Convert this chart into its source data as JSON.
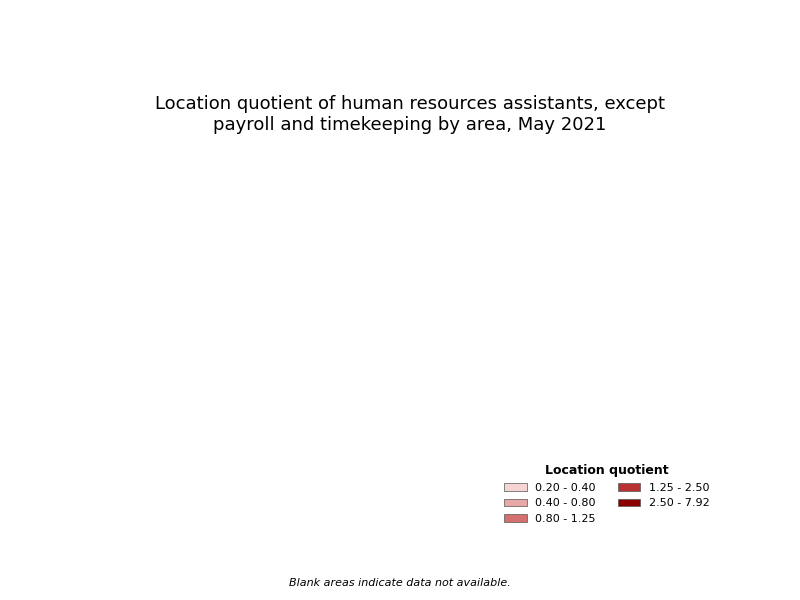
{
  "title": "Location quotient of human resources assistants, except\npayroll and timekeeping by area, May 2021",
  "title_fontsize": 13,
  "legend_title": "Location quotient",
  "legend_labels": [
    "0.20 - 0.40",
    "0.40 - 0.80",
    "0.80 - 1.25",
    "1.25 - 2.50",
    "2.50 - 7.92"
  ],
  "legend_colors": [
    "#f7d4d4",
    "#e8a8a8",
    "#d47070",
    "#b83232",
    "#8b0000"
  ],
  "blank_note": "Blank areas indicate data not available.",
  "background_color": "#ffffff",
  "map_background": "#ffffff",
  "border_color": "#000000",
  "border_linewidth": 0.3
}
